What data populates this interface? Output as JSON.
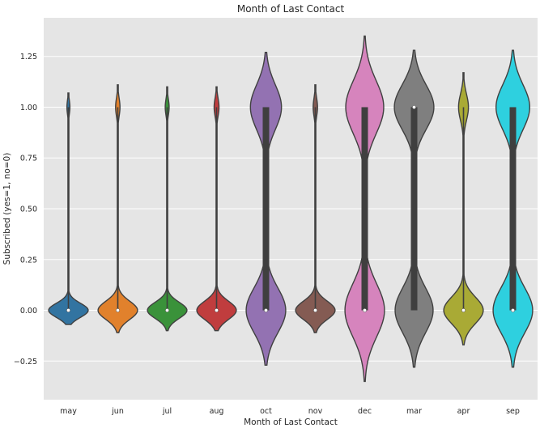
{
  "chart_data": {
    "type": "violin",
    "title": "Month of Last Contact",
    "xlabel": "Month of Last Contact",
    "ylabel": "Subscribed (yes=1, no=0)",
    "categories": [
      "may",
      "jun",
      "jul",
      "aug",
      "oct",
      "nov",
      "dec",
      "mar",
      "apr",
      "sep"
    ],
    "ylim": [
      -0.44,
      1.44
    ],
    "yticks": [
      -0.25,
      0.0,
      0.25,
      0.5,
      0.75,
      1.0,
      1.25
    ],
    "ytick_labels": [
      "−0.25",
      "0.00",
      "0.25",
      "0.50",
      "0.75",
      "1.00",
      "1.25"
    ],
    "grid": true,
    "background": "#e5e5e5",
    "series": [
      {
        "category": "may",
        "color": "#3274a1",
        "share_yes": 0.07,
        "median": 0.0,
        "q1": 0.0,
        "q3": 0.0,
        "y_min": -0.07,
        "y_max": 1.07,
        "bw": 0.035
      },
      {
        "category": "jun",
        "color": "#e1812c",
        "share_yes": 0.1,
        "median": 0.0,
        "q1": 0.0,
        "q3": 0.0,
        "y_min": -0.11,
        "y_max": 1.11,
        "bw": 0.045
      },
      {
        "category": "jul",
        "color": "#3a923a",
        "share_yes": 0.09,
        "median": 0.0,
        "q1": 0.0,
        "q3": 0.0,
        "y_min": -0.1,
        "y_max": 1.1,
        "bw": 0.04
      },
      {
        "category": "aug",
        "color": "#c03d3e",
        "share_yes": 0.11,
        "median": 0.0,
        "q1": 0.0,
        "q3": 0.0,
        "y_min": -0.1,
        "y_max": 1.1,
        "bw": 0.045
      },
      {
        "category": "oct",
        "color": "#9372b2",
        "share_yes": 0.44,
        "median": 0.0,
        "q1": 0.0,
        "q3": 1.0,
        "y_min": -0.27,
        "y_max": 1.27,
        "bw": 0.11
      },
      {
        "category": "nov",
        "color": "#845b53",
        "share_yes": 0.1,
        "median": 0.0,
        "q1": 0.0,
        "q3": 0.0,
        "y_min": -0.11,
        "y_max": 1.11,
        "bw": 0.045
      },
      {
        "category": "dec",
        "color": "#d684bd",
        "share_yes": 0.49,
        "median": 0.0,
        "q1": 0.0,
        "q3": 1.0,
        "y_min": -0.35,
        "y_max": 1.35,
        "bw": 0.13
      },
      {
        "category": "mar",
        "color": "#7f7f7f",
        "share_yes": 0.51,
        "median": 1.0,
        "q1": 0.0,
        "q3": 1.0,
        "y_min": -0.28,
        "y_max": 1.28,
        "bw": 0.11
      },
      {
        "category": "apr",
        "color": "#a9aa35",
        "share_yes": 0.2,
        "median": 0.0,
        "q1": 0.0,
        "q3": 0.0,
        "y_min": -0.17,
        "y_max": 1.17,
        "bw": 0.065
      },
      {
        "category": "sep",
        "color": "#2ed0df",
        "share_yes": 0.46,
        "median": 0.0,
        "q1": 0.0,
        "q3": 1.0,
        "y_min": -0.28,
        "y_max": 1.28,
        "bw": 0.11
      }
    ]
  }
}
